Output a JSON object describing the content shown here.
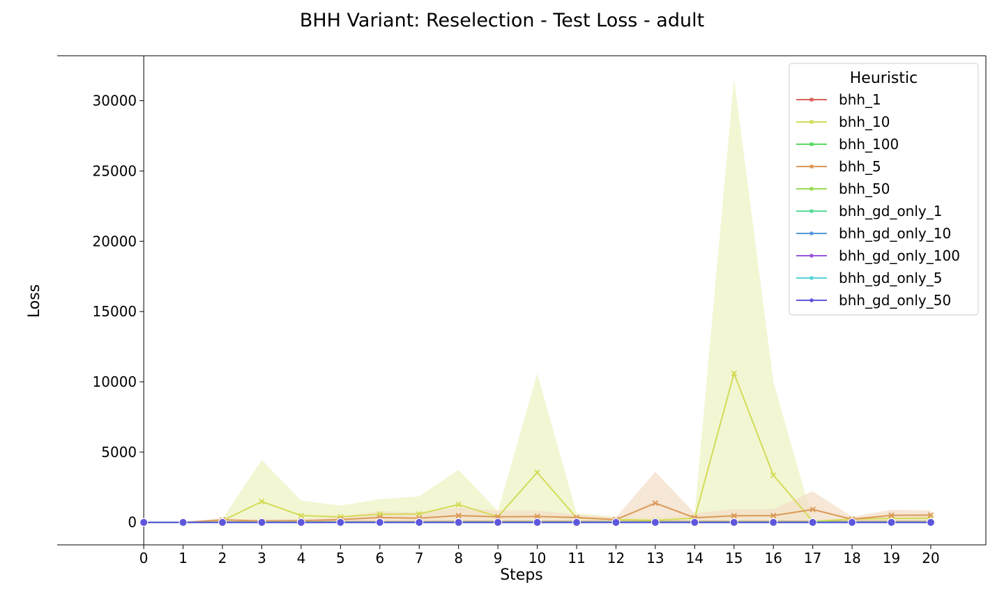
{
  "chart_data": {
    "type": "line",
    "title": "BHH Variant: Reselection - Test Loss - adult",
    "xlabel": "Steps",
    "ylabel": "Loss",
    "x": [
      0,
      1,
      2,
      3,
      4,
      5,
      6,
      7,
      8,
      9,
      10,
      11,
      12,
      13,
      14,
      15,
      16,
      17,
      18,
      19,
      20
    ],
    "xlim": [
      -2.2,
      21.4
    ],
    "ylim": [
      -1600,
      33200
    ],
    "yticks": [
      0,
      5000,
      10000,
      15000,
      20000,
      25000,
      30000
    ],
    "grid": false,
    "legend": {
      "title": "Heuristic",
      "placement": "top-right"
    },
    "series": [
      {
        "name": "bhh_1",
        "color": "#db5f57",
        "marker": "x",
        "values": [
          0,
          0,
          30,
          40,
          40,
          50,
          50,
          50,
          60,
          60,
          60,
          60,
          60,
          60,
          60,
          60,
          60,
          60,
          60,
          60,
          60
        ]
      },
      {
        "name": "bhh_10",
        "color": "#d3db57",
        "marker": "x",
        "values": [
          0,
          0,
          120,
          1480,
          480,
          400,
          580,
          600,
          1270,
          400,
          3550,
          320,
          200,
          150,
          300,
          10600,
          3350,
          80,
          230,
          280,
          300
        ],
        "band_low": [
          0,
          0,
          0,
          0,
          0,
          0,
          0,
          0,
          0,
          0,
          0,
          0,
          0,
          0,
          0,
          0,
          0,
          0,
          0,
          0,
          0
        ],
        "band_high": [
          0,
          0,
          250,
          4450,
          1550,
          1200,
          1650,
          1850,
          3750,
          800,
          10600,
          650,
          400,
          300,
          600,
          31600,
          10000,
          150,
          350,
          400,
          450
        ],
        "band_color": "#eef3c4"
      },
      {
        "name": "bhh_100",
        "color": "#57db5f",
        "marker": "x",
        "values": [
          0,
          0,
          10,
          20,
          30,
          30,
          30,
          30,
          40,
          40,
          40,
          40,
          40,
          40,
          40,
          40,
          40,
          40,
          40,
          40,
          40
        ]
      },
      {
        "name": "bhh_5",
        "color": "#db9957",
        "marker": "x",
        "values": [
          0,
          0,
          180,
          100,
          120,
          200,
          350,
          300,
          480,
          400,
          420,
          350,
          200,
          1370,
          330,
          470,
          480,
          920,
          220,
          500,
          520
        ],
        "band_low": [
          0,
          0,
          0,
          0,
          0,
          0,
          0,
          0,
          0,
          0,
          0,
          0,
          0,
          0,
          0,
          0,
          0,
          0,
          0,
          0,
          0
        ],
        "band_high": [
          0,
          0,
          300,
          200,
          250,
          400,
          800,
          700,
          1050,
          850,
          850,
          550,
          350,
          3600,
          650,
          950,
          950,
          2200,
          400,
          900,
          850
        ],
        "band_color": "#f3dfc8"
      },
      {
        "name": "bhh_50",
        "color": "#99db57",
        "marker": "x",
        "values": [
          0,
          0,
          20,
          30,
          30,
          30,
          30,
          30,
          30,
          30,
          30,
          30,
          30,
          30,
          30,
          30,
          30,
          30,
          30,
          30,
          30
        ]
      },
      {
        "name": "bhh_gd_only_1",
        "color": "#57db99",
        "marker": "o",
        "values": [
          0,
          0,
          0,
          0,
          0,
          0,
          0,
          0,
          0,
          0,
          0,
          0,
          0,
          0,
          0,
          0,
          0,
          0,
          0,
          0,
          0
        ]
      },
      {
        "name": "bhh_gd_only_10",
        "color": "#5799db",
        "marker": "o",
        "values": [
          0,
          0,
          0,
          0,
          0,
          0,
          0,
          0,
          0,
          0,
          0,
          0,
          0,
          0,
          0,
          0,
          0,
          0,
          0,
          0,
          0
        ]
      },
      {
        "name": "bhh_gd_only_100",
        "color": "#9957db",
        "marker": "o",
        "values": [
          0,
          0,
          0,
          0,
          0,
          0,
          0,
          0,
          0,
          0,
          0,
          0,
          0,
          0,
          0,
          0,
          0,
          0,
          0,
          0,
          0
        ]
      },
      {
        "name": "bhh_gd_only_5",
        "color": "#57d3db",
        "marker": "o",
        "values": [
          0,
          0,
          0,
          0,
          0,
          0,
          0,
          0,
          0,
          0,
          0,
          0,
          0,
          0,
          0,
          0,
          0,
          0,
          0,
          0,
          0
        ]
      },
      {
        "name": "bhh_gd_only_50",
        "color": "#5f57db",
        "marker": "o",
        "values": [
          0,
          0,
          0,
          0,
          0,
          0,
          0,
          0,
          0,
          0,
          0,
          0,
          0,
          0,
          0,
          0,
          0,
          0,
          0,
          0,
          0
        ]
      }
    ]
  }
}
